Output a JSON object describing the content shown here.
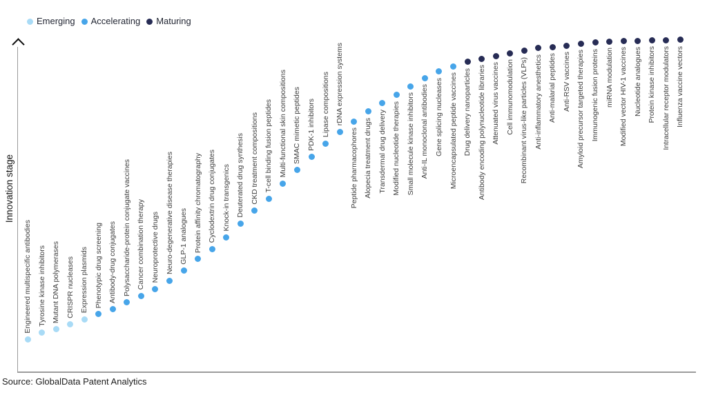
{
  "legend": {
    "items": [
      {
        "label": "Emerging",
        "color": "#A9DBF6"
      },
      {
        "label": "Accelerating",
        "color": "#47A5E9"
      },
      {
        "label": "Maturing",
        "color": "#272C55"
      }
    ]
  },
  "y_axis_label": "Innovation stage",
  "source_text": "Source: GlobalData Patent Analytics",
  "chart_data": {
    "type": "scatter",
    "title": "",
    "xlabel": "",
    "ylabel": "Innovation stage",
    "ylim": [
      0,
      100
    ],
    "grid": false,
    "legend_position": "top-left",
    "legend": [
      "Emerging",
      "Accelerating",
      "Maturing"
    ],
    "series_colors": {
      "Emerging": "#A9DBF6",
      "Accelerating": "#47A5E9",
      "Maturing": "#272C55"
    },
    "points": [
      {
        "label": "Engineered multispecific antibodies",
        "stage": "Emerging",
        "innovation_score": 10
      },
      {
        "label": "Tyrosine kinase inhibitors",
        "stage": "Emerging",
        "innovation_score": 12
      },
      {
        "label": "Mutant DNA polymerases",
        "stage": "Emerging",
        "innovation_score": 13
      },
      {
        "label": "CRISPR nucleases",
        "stage": "Emerging",
        "innovation_score": 14.5
      },
      {
        "label": "Expression plasmids",
        "stage": "Emerging",
        "innovation_score": 16
      },
      {
        "label": "Phenotypic drug screening",
        "stage": "Accelerating",
        "innovation_score": 17.5
      },
      {
        "label": "Antibody-drug conjugates",
        "stage": "Accelerating",
        "innovation_score": 19
      },
      {
        "label": "Polysaccharide-protein conjugate vaccines",
        "stage": "Accelerating",
        "innovation_score": 21
      },
      {
        "label": "Cancer combination therapy",
        "stage": "Accelerating",
        "innovation_score": 23
      },
      {
        "label": "Neuroprotective drugs",
        "stage": "Accelerating",
        "innovation_score": 25
      },
      {
        "label": "Neuro-degenerative disease therapies",
        "stage": "Accelerating",
        "innovation_score": 27.5
      },
      {
        "label": "GLP-1 analogues",
        "stage": "Accelerating",
        "innovation_score": 30.5
      },
      {
        "label": "Protein affinity chromatography",
        "stage": "Accelerating",
        "innovation_score": 34
      },
      {
        "label": "Cyclodextrin drug conjugates",
        "stage": "Accelerating",
        "innovation_score": 37
      },
      {
        "label": "Knock-in transgenics",
        "stage": "Accelerating",
        "innovation_score": 40.5
      },
      {
        "label": "Deuterated drug synthesis",
        "stage": "Accelerating",
        "innovation_score": 44.5
      },
      {
        "label": "CKD treatment compositions",
        "stage": "Accelerating",
        "innovation_score": 48.5
      },
      {
        "label": "T-cell binding fusion peptides",
        "stage": "Accelerating",
        "innovation_score": 52
      },
      {
        "label": "Multi-functional skin compositions",
        "stage": "Accelerating",
        "innovation_score": 56.5
      },
      {
        "label": "SMAC mimetic peptides",
        "stage": "Accelerating",
        "innovation_score": 60.5
      },
      {
        "label": "PDK-1 inhibitors",
        "stage": "Accelerating",
        "innovation_score": 64.5
      },
      {
        "label": "Lipase compositions",
        "stage": "Accelerating",
        "innovation_score": 68.5
      },
      {
        "label": "rDNA expression systems",
        "stage": "Accelerating",
        "innovation_score": 72
      },
      {
        "label": "Peptide pharmacophores",
        "stage": "Accelerating",
        "innovation_score": 75
      },
      {
        "label": "Alopecia treatment drugs",
        "stage": "Accelerating",
        "innovation_score": 78
      },
      {
        "label": "Transdermal drug delivery",
        "stage": "Accelerating",
        "innovation_score": 80.5
      },
      {
        "label": "Modified nucleotide therapies",
        "stage": "Accelerating",
        "innovation_score": 83
      },
      {
        "label": "Small molecule kinase inhibitors",
        "stage": "Accelerating",
        "innovation_score": 85.5
      },
      {
        "label": "Anti-IL monoclonal antibodies",
        "stage": "Accelerating",
        "innovation_score": 88
      },
      {
        "label": "Gene splicing nucleases",
        "stage": "Accelerating",
        "innovation_score": 90
      },
      {
        "label": "Microencapsulated peptide vaccines",
        "stage": "Accelerating",
        "innovation_score": 91.5
      },
      {
        "label": "Drug delivery nanoparticles",
        "stage": "Maturing",
        "innovation_score": 92.8
      },
      {
        "label": "Antibody encoding polynucleotide libraries",
        "stage": "Maturing",
        "innovation_score": 93.8
      },
      {
        "label": "Attenuated virus vaccines",
        "stage": "Maturing",
        "innovation_score": 94.6
      },
      {
        "label": "Cell immunomodulation",
        "stage": "Maturing",
        "innovation_score": 95.4
      },
      {
        "label": "Recombinant virus-like particles (VLPs)",
        "stage": "Maturing",
        "innovation_score": 96.1
      },
      {
        "label": "Anti-inflammatory anesthetics",
        "stage": "Maturing",
        "innovation_score": 96.9
      },
      {
        "label": "Anti-malarial peptides",
        "stage": "Maturing",
        "innovation_score": 97.3
      },
      {
        "label": "Anti-RSV vaccines",
        "stage": "Maturing",
        "innovation_score": 97.7
      },
      {
        "label": "Amyloid precursor targeted therapies",
        "stage": "Maturing",
        "innovation_score": 98.3
      },
      {
        "label": "Immunogenic fusion proteins",
        "stage": "Maturing",
        "innovation_score": 98.6
      },
      {
        "label": "miRNA modulation",
        "stage": "Maturing",
        "innovation_score": 98.9
      },
      {
        "label": "Modified vector HIV-1 vaccines",
        "stage": "Maturing",
        "innovation_score": 99.1
      },
      {
        "label": "Nucleotide analogues",
        "stage": "Maturing",
        "innovation_score": 99.1
      },
      {
        "label": "Protein kinase inhibitors",
        "stage": "Maturing",
        "innovation_score": 99.3
      },
      {
        "label": "Intracellular receptor modulators",
        "stage": "Maturing",
        "innovation_score": 99.3
      },
      {
        "label": "Influenza vaccine vectors",
        "stage": "Maturing",
        "innovation_score": 99.4
      }
    ]
  }
}
